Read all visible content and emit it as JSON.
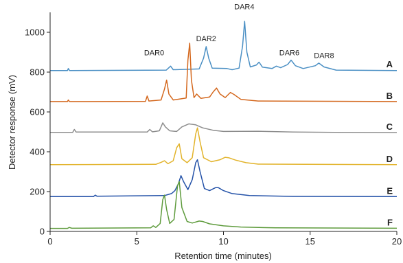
{
  "chart_data": {
    "type": "line",
    "title": "",
    "xlabel": "Retention time (minutes)",
    "ylabel": "Detector response (mV)",
    "xlim": [
      0,
      20
    ],
    "ylim": [
      0,
      1100
    ],
    "xticks": [
      0,
      5,
      10,
      15,
      20
    ],
    "yticks": [
      0,
      200,
      400,
      600,
      800,
      1000
    ],
    "grid": false,
    "legend": "none",
    "annotations": [
      {
        "text": "DAR0",
        "x": 6.0,
        "y": 885
      },
      {
        "text": "DAR2",
        "x": 9.0,
        "y": 955
      },
      {
        "text": "DAR4",
        "x": 11.2,
        "y": 1115
      },
      {
        "text": "DAR6",
        "x": 13.8,
        "y": 885
      },
      {
        "text": "DAR8",
        "x": 15.8,
        "y": 870
      }
    ],
    "series": [
      {
        "name": "A",
        "color": "#4a8fc4",
        "baseline": 810,
        "points": [
          [
            0,
            808
          ],
          [
            1.0,
            808
          ],
          [
            1.05,
            818
          ],
          [
            1.12,
            808
          ],
          [
            6.7,
            810
          ],
          [
            6.95,
            830
          ],
          [
            7.1,
            812
          ],
          [
            8.6,
            816
          ],
          [
            8.85,
            870
          ],
          [
            9.0,
            928
          ],
          [
            9.15,
            870
          ],
          [
            9.35,
            820
          ],
          [
            10.2,
            818
          ],
          [
            10.5,
            812
          ],
          [
            10.9,
            820
          ],
          [
            11.1,
            930
          ],
          [
            11.22,
            1055
          ],
          [
            11.35,
            900
          ],
          [
            11.55,
            826
          ],
          [
            11.9,
            836
          ],
          [
            12.05,
            850
          ],
          [
            12.25,
            825
          ],
          [
            12.8,
            818
          ],
          [
            13.05,
            830
          ],
          [
            13.3,
            822
          ],
          [
            13.7,
            838
          ],
          [
            13.9,
            860
          ],
          [
            14.15,
            832
          ],
          [
            14.6,
            818
          ],
          [
            15.3,
            832
          ],
          [
            15.5,
            845
          ],
          [
            15.8,
            826
          ],
          [
            16.5,
            810
          ],
          [
            20,
            808
          ]
        ]
      },
      {
        "name": "B",
        "color": "#d4681e",
        "baseline": 652,
        "points": [
          [
            0,
            652
          ],
          [
            1.0,
            652
          ],
          [
            1.05,
            660
          ],
          [
            1.12,
            652
          ],
          [
            5.5,
            653
          ],
          [
            5.6,
            680
          ],
          [
            5.7,
            655
          ],
          [
            6.4,
            660
          ],
          [
            6.6,
            715
          ],
          [
            6.72,
            760
          ],
          [
            6.85,
            690
          ],
          [
            7.1,
            660
          ],
          [
            7.85,
            670
          ],
          [
            7.95,
            860
          ],
          [
            8.05,
            945
          ],
          [
            8.15,
            760
          ],
          [
            8.3,
            672
          ],
          [
            8.45,
            690
          ],
          [
            8.7,
            668
          ],
          [
            9.2,
            675
          ],
          [
            9.4,
            700
          ],
          [
            9.6,
            720
          ],
          [
            9.8,
            690
          ],
          [
            10.1,
            672
          ],
          [
            10.4,
            698
          ],
          [
            10.6,
            688
          ],
          [
            11.0,
            663
          ],
          [
            12,
            655
          ],
          [
            20,
            652
          ]
        ]
      },
      {
        "name": "C",
        "color": "#8c8c8c",
        "baseline": 497,
        "points": [
          [
            0,
            497
          ],
          [
            1.3,
            497
          ],
          [
            1.4,
            512
          ],
          [
            1.5,
            499
          ],
          [
            5.6,
            499
          ],
          [
            5.75,
            512
          ],
          [
            5.9,
            500
          ],
          [
            6.3,
            505
          ],
          [
            6.5,
            545
          ],
          [
            6.65,
            525
          ],
          [
            6.9,
            505
          ],
          [
            7.3,
            502
          ],
          [
            7.6,
            525
          ],
          [
            8.0,
            540
          ],
          [
            8.4,
            535
          ],
          [
            8.8,
            520
          ],
          [
            9.4,
            508
          ],
          [
            10,
            502
          ],
          [
            12,
            503
          ],
          [
            14,
            499
          ],
          [
            17,
            497
          ],
          [
            20,
            496
          ]
        ]
      },
      {
        "name": "D",
        "color": "#e2b32a",
        "baseline": 335,
        "points": [
          [
            0,
            335
          ],
          [
            6.1,
            337
          ],
          [
            6.4,
            347
          ],
          [
            6.6,
            355
          ],
          [
            6.8,
            340
          ],
          [
            7.1,
            355
          ],
          [
            7.3,
            420
          ],
          [
            7.45,
            440
          ],
          [
            7.6,
            365
          ],
          [
            7.9,
            345
          ],
          [
            8.2,
            370
          ],
          [
            8.4,
            490
          ],
          [
            8.5,
            520
          ],
          [
            8.65,
            450
          ],
          [
            8.85,
            370
          ],
          [
            9.3,
            350
          ],
          [
            9.8,
            360
          ],
          [
            10.1,
            372
          ],
          [
            10.3,
            370
          ],
          [
            10.7,
            358
          ],
          [
            11.3,
            345
          ],
          [
            12,
            338
          ],
          [
            20,
            335
          ]
        ]
      },
      {
        "name": "E",
        "color": "#2452a8",
        "baseline": 175,
        "points": [
          [
            0,
            175
          ],
          [
            2.5,
            175
          ],
          [
            2.6,
            182
          ],
          [
            2.7,
            177
          ],
          [
            6.6,
            180
          ],
          [
            7.0,
            190
          ],
          [
            7.2,
            205
          ],
          [
            7.4,
            240
          ],
          [
            7.55,
            280
          ],
          [
            7.7,
            250
          ],
          [
            7.95,
            210
          ],
          [
            8.2,
            260
          ],
          [
            8.4,
            345
          ],
          [
            8.5,
            360
          ],
          [
            8.65,
            300
          ],
          [
            8.9,
            215
          ],
          [
            9.2,
            205
          ],
          [
            9.55,
            220
          ],
          [
            9.7,
            220
          ],
          [
            10.0,
            205
          ],
          [
            10.5,
            190
          ],
          [
            11.5,
            180
          ],
          [
            14,
            176
          ],
          [
            20,
            175
          ]
        ]
      },
      {
        "name": "F",
        "color": "#5e9b3c",
        "baseline": 15,
        "points": [
          [
            0,
            15
          ],
          [
            1.0,
            15
          ],
          [
            1.1,
            20
          ],
          [
            1.25,
            16
          ],
          [
            5.8,
            18
          ],
          [
            5.95,
            28
          ],
          [
            6.1,
            20
          ],
          [
            6.35,
            40
          ],
          [
            6.5,
            160
          ],
          [
            6.6,
            182
          ],
          [
            6.72,
            110
          ],
          [
            6.9,
            40
          ],
          [
            7.15,
            60
          ],
          [
            7.35,
            230
          ],
          [
            7.45,
            250
          ],
          [
            7.6,
            120
          ],
          [
            7.9,
            50
          ],
          [
            8.2,
            42
          ],
          [
            8.6,
            52
          ],
          [
            8.8,
            50
          ],
          [
            9.2,
            38
          ],
          [
            10,
            28
          ],
          [
            11,
            22
          ],
          [
            13,
            18
          ],
          [
            20,
            16
          ]
        ]
      }
    ]
  }
}
